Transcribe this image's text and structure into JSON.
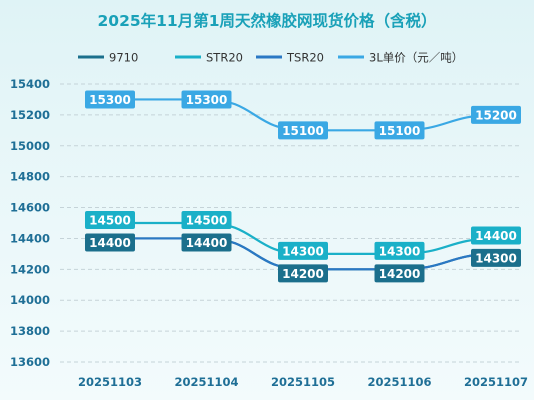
{
  "chart_data": {
    "type": "line",
    "title": "2025年11月第1周天然橡胶网现货价格（含税）",
    "categories": [
      "20251103",
      "20251104",
      "20251105",
      "20251106",
      "20251107"
    ],
    "ylim": [
      13600,
      15400
    ],
    "yticks": [
      13600,
      13800,
      14000,
      14200,
      14400,
      14600,
      14800,
      15000,
      15200,
      15400
    ],
    "grid": true,
    "legend_position": "top",
    "series": [
      {
        "name": "9710",
        "values": [
          14400,
          14400,
          14200,
          14200,
          14300
        ],
        "color": "#1b6f8c"
      },
      {
        "name": "STR20",
        "values": [
          14500,
          14500,
          14300,
          14300,
          14400
        ],
        "color": "#1ab0c8"
      },
      {
        "name": "TSR20",
        "values": [
          14400,
          14400,
          14200,
          14200,
          14300
        ],
        "color": "#2a78c4"
      },
      {
        "name": "3L单价（元／吨）",
        "values": [
          15300,
          15300,
          15100,
          15100,
          15200
        ],
        "color": "#3aa8e4"
      }
    ],
    "label_series": [
      3,
      1,
      0
    ]
  },
  "colors": {
    "title": "#1aa1b8",
    "axis_text": "#1f6f96",
    "grid": "#c5d3d8"
  }
}
